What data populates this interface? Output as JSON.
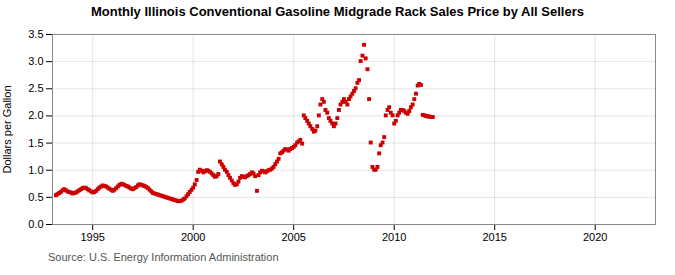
{
  "chart_data": {
    "type": "scatter",
    "title": "Monthly Illinois Conventional Gasoline Midgrade Rack Sales Price by All Sellers",
    "ylabel": "Dollars per Gallon",
    "source": "Source: U.S. Energy Information Administration",
    "color": "#cc0000",
    "marker": "square",
    "grid": true,
    "xlim": [
      1993.0,
      2023.0
    ],
    "ylim": [
      0.0,
      3.5
    ],
    "xticks": [
      1995,
      2000,
      2005,
      2010,
      2015,
      2020
    ],
    "yticks": [
      {
        "value": 0.0,
        "label": "0.0"
      },
      0.5,
      {
        "value": 1.0,
        "label": "1.0"
      },
      1.5,
      {
        "value": 2.0,
        "label": "2.0"
      },
      2.5,
      {
        "value": 3.0,
        "label": "3.0"
      },
      3.5
    ],
    "x": [
      1993.17,
      1993.25,
      1993.33,
      1993.42,
      1993.5,
      1993.58,
      1993.67,
      1993.75,
      1993.83,
      1993.92,
      1994.0,
      1994.08,
      1994.17,
      1994.25,
      1994.33,
      1994.42,
      1994.5,
      1994.58,
      1994.67,
      1994.75,
      1994.83,
      1994.92,
      1995.0,
      1995.08,
      1995.17,
      1995.25,
      1995.33,
      1995.42,
      1995.5,
      1995.58,
      1995.67,
      1995.75,
      1995.83,
      1995.92,
      1996.0,
      1996.08,
      1996.17,
      1996.25,
      1996.33,
      1996.42,
      1996.5,
      1996.58,
      1996.67,
      1996.75,
      1996.83,
      1996.92,
      1997.0,
      1997.08,
      1997.17,
      1997.25,
      1997.33,
      1997.42,
      1997.5,
      1997.58,
      1997.67,
      1997.75,
      1997.83,
      1997.92,
      1998.0,
      1998.08,
      1998.17,
      1998.25,
      1998.33,
      1998.42,
      1998.5,
      1998.58,
      1998.67,
      1998.75,
      1998.83,
      1998.92,
      1999.0,
      1999.08,
      1999.17,
      1999.25,
      1999.33,
      1999.42,
      1999.5,
      1999.58,
      1999.67,
      1999.75,
      1999.83,
      1999.92,
      2000.0,
      2000.08,
      2000.17,
      2000.25,
      2000.33,
      2000.42,
      2000.5,
      2000.58,
      2000.67,
      2000.75,
      2000.83,
      2000.92,
      2001.0,
      2001.08,
      2001.17,
      2001.25,
      2001.33,
      2001.42,
      2001.5,
      2001.58,
      2001.67,
      2001.75,
      2001.83,
      2001.92,
      2002.0,
      2002.08,
      2002.17,
      2002.25,
      2002.33,
      2002.42,
      2002.5,
      2002.58,
      2002.67,
      2002.75,
      2002.83,
      2002.92,
      2003.0,
      2003.08,
      2003.17,
      2003.25,
      2003.33,
      2003.42,
      2003.5,
      2003.58,
      2003.67,
      2003.75,
      2003.83,
      2003.92,
      2004.0,
      2004.08,
      2004.17,
      2004.25,
      2004.33,
      2004.42,
      2004.5,
      2004.58,
      2004.67,
      2004.75,
      2004.83,
      2004.92,
      2005.0,
      2005.08,
      2005.17,
      2005.25,
      2005.33,
      2005.42,
      2005.5,
      2005.58,
      2005.67,
      2005.75,
      2005.83,
      2005.92,
      2006.0,
      2006.08,
      2006.17,
      2006.25,
      2006.33,
      2006.42,
      2006.5,
      2006.58,
      2006.67,
      2006.75,
      2006.83,
      2006.92,
      2007.0,
      2007.08,
      2007.17,
      2007.25,
      2007.33,
      2007.42,
      2007.5,
      2007.58,
      2007.67,
      2007.75,
      2007.83,
      2007.92,
      2008.0,
      2008.08,
      2008.17,
      2008.25,
      2008.33,
      2008.42,
      2008.5,
      2008.58,
      2008.67,
      2008.75,
      2008.83,
      2008.92,
      2009.0,
      2009.08,
      2009.17,
      2009.25,
      2009.33,
      2009.42,
      2009.5,
      2009.58,
      2009.67,
      2009.75,
      2009.83,
      2009.92,
      2010.0,
      2010.08,
      2010.17,
      2010.25,
      2010.33,
      2010.42,
      2010.5,
      2010.58,
      2010.67,
      2010.75,
      2010.83,
      2010.92,
      2011.0,
      2011.08,
      2011.17,
      2011.25,
      2011.33,
      2011.42,
      2011.5,
      2011.58,
      2011.67,
      2011.75,
      2011.83,
      2011.92
    ],
    "values": [
      0.54,
      0.56,
      0.58,
      0.6,
      0.63,
      0.65,
      0.63,
      0.61,
      0.6,
      0.59,
      0.57,
      0.58,
      0.59,
      0.61,
      0.63,
      0.65,
      0.67,
      0.68,
      0.67,
      0.65,
      0.63,
      0.61,
      0.59,
      0.6,
      0.62,
      0.65,
      0.68,
      0.7,
      0.72,
      0.71,
      0.7,
      0.68,
      0.66,
      0.64,
      0.62,
      0.64,
      0.67,
      0.7,
      0.73,
      0.75,
      0.74,
      0.73,
      0.71,
      0.7,
      0.68,
      0.66,
      0.65,
      0.67,
      0.69,
      0.72,
      0.74,
      0.73,
      0.72,
      0.71,
      0.69,
      0.67,
      0.64,
      0.61,
      0.58,
      0.57,
      0.56,
      0.55,
      0.54,
      0.53,
      0.52,
      0.51,
      0.5,
      0.49,
      0.48,
      0.47,
      0.46,
      0.45,
      0.44,
      0.43,
      0.43,
      0.44,
      0.46,
      0.48,
      0.52,
      0.56,
      0.6,
      0.64,
      0.68,
      0.74,
      0.82,
      0.97,
      1.01,
      0.99,
      0.96,
      0.98,
      1.0,
      0.99,
      0.97,
      0.94,
      0.91,
      0.88,
      0.89,
      0.93,
      1.16,
      1.11,
      1.06,
      1.01,
      0.97,
      0.91,
      0.86,
      0.81,
      0.76,
      0.73,
      0.74,
      0.79,
      0.86,
      0.89,
      0.88,
      0.87,
      0.89,
      0.91,
      0.93,
      0.96,
      0.94,
      0.89,
      0.62,
      0.91,
      0.96,
      0.99,
      0.98,
      0.96,
      0.98,
      1.0,
      1.01,
      1.03,
      1.06,
      1.11,
      1.16,
      1.21,
      1.31,
      1.33,
      1.36,
      1.39,
      1.38,
      1.36,
      1.39,
      1.41,
      1.43,
      1.46,
      1.51,
      1.53,
      1.56,
      1.49,
      2.01,
      1.96,
      1.91,
      1.86,
      1.81,
      1.76,
      1.71,
      1.73,
      1.81,
      2.01,
      2.21,
      2.31,
      2.26,
      2.11,
      2.06,
      1.96,
      1.91,
      1.86,
      1.81,
      1.86,
      1.96,
      2.11,
      2.21,
      2.26,
      2.31,
      2.26,
      2.21,
      2.31,
      2.36,
      2.41,
      2.46,
      2.51,
      2.61,
      2.66,
      3.01,
      3.11,
      3.31,
      3.06,
      2.86,
      2.31,
      1.51,
      1.06,
      1.01,
      1.01,
      1.06,
      1.31,
      1.46,
      1.51,
      1.61,
      2.01,
      2.11,
      2.16,
      2.06,
      2.01,
      1.86,
      1.91,
      2.01,
      2.06,
      2.11,
      2.11,
      2.09,
      2.06,
      2.04,
      2.09,
      2.16,
      2.21,
      2.31,
      2.41,
      2.56,
      2.59,
      2.57,
      2.02,
      2.01,
      2.0,
      1.99,
      1.99,
      1.98,
      1.98
    ]
  }
}
